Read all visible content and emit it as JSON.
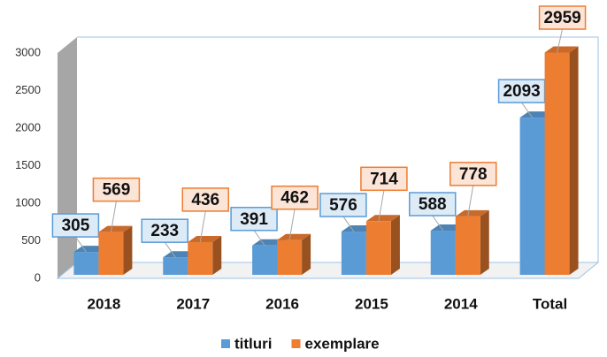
{
  "chart_data": {
    "type": "bar3d",
    "categories": [
      "2018",
      "2017",
      "2016",
      "2015",
      "2014",
      "Total"
    ],
    "series": [
      {
        "name": "titluri",
        "color": "#5b9bd5",
        "values": [
          305,
          233,
          391,
          576,
          588,
          2093
        ]
      },
      {
        "name": "exemplare",
        "color": "#ed7d31",
        "values": [
          569,
          436,
          462,
          714,
          778,
          2959
        ]
      }
    ],
    "ylim": [
      0,
      3000
    ],
    "yticks": [
      0,
      500,
      1000,
      1500,
      2000,
      2500,
      3000
    ],
    "grid": false,
    "legend": "bottom"
  }
}
